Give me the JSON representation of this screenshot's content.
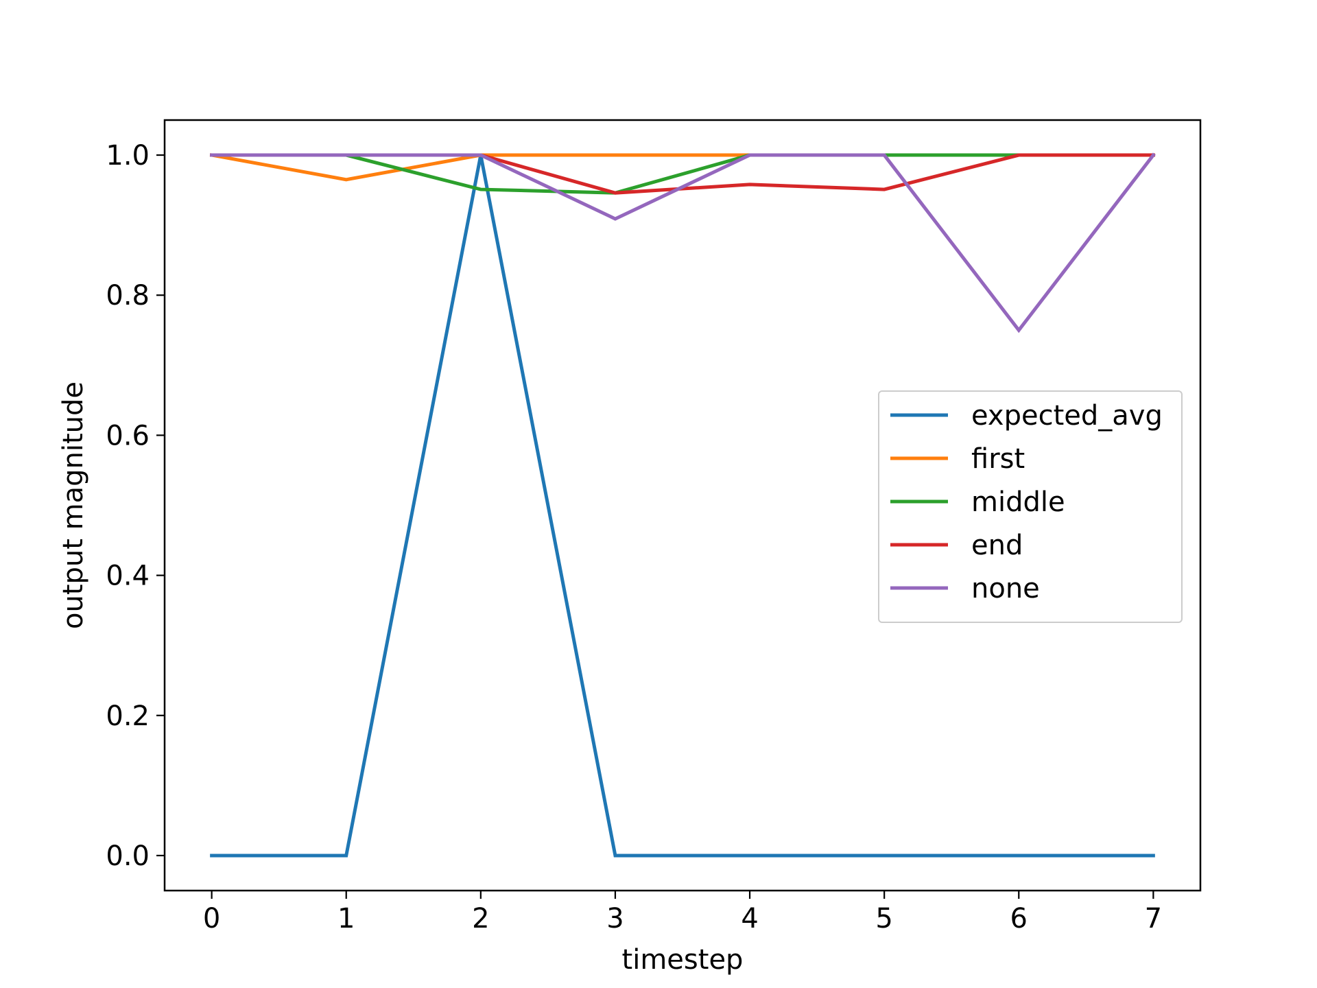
{
  "chart_data": {
    "type": "line",
    "xlabel": "timestep",
    "ylabel": "output magnitude",
    "x": [
      0,
      1,
      2,
      3,
      4,
      5,
      6,
      7
    ],
    "xlim": [
      -0.35,
      7.35
    ],
    "ylim": [
      -0.05,
      1.05
    ],
    "xticks": [
      "0",
      "1",
      "2",
      "3",
      "4",
      "5",
      "6",
      "7"
    ],
    "yticks": [
      "0.0",
      "0.2",
      "0.4",
      "0.6",
      "0.8",
      "1.0"
    ],
    "grid": false,
    "legend_position": "center-right",
    "series": [
      {
        "name": "expected_avg",
        "color": "#1f77b4",
        "values": [
          0,
          0,
          1,
          0,
          0,
          0,
          0,
          0
        ]
      },
      {
        "name": "first",
        "color": "#ff7f0e",
        "values": [
          1,
          0.965,
          1,
          1,
          1,
          1,
          1,
          1
        ]
      },
      {
        "name": "middle",
        "color": "#2ca02c",
        "values": [
          1,
          1,
          0.951,
          0.946,
          1,
          1,
          1,
          1
        ]
      },
      {
        "name": "end",
        "color": "#d62728",
        "values": [
          1,
          1,
          1,
          0.946,
          0.958,
          0.951,
          1,
          1
        ]
      },
      {
        "name": "none",
        "color": "#9467bd",
        "values": [
          1,
          1,
          1,
          0.909,
          1,
          1,
          0.75,
          1
        ]
      }
    ]
  }
}
